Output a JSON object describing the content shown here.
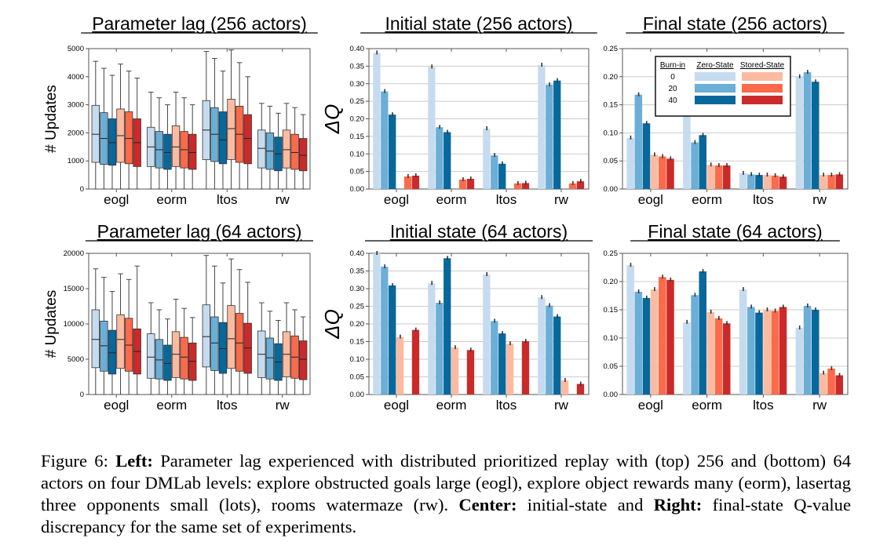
{
  "colors": {
    "zero": [
      "#c6dbef",
      "#6baed6",
      "#08689c"
    ],
    "stored": [
      "#fcbba1",
      "#fb6a4a",
      "#cb2a2a"
    ],
    "axis": "#555555",
    "grid": "#cccccc"
  },
  "legend": {
    "title_burnin": "Burn-in",
    "title_zero": "Zero-State",
    "title_stored": "Stored-State",
    "rows": [
      "0",
      "20",
      "40"
    ]
  },
  "caption": {
    "fig_label": "Figure 6:",
    "left_bold": "Left:",
    "text1": "Parameter lag experienced with distributed prioritized replay with (top) 256 and (bottom) 64 actors on four DMLab levels: explore obstructed goals large (eogl), explore object rewards many (eorm), lasertag three opponents small (lots), rooms watermaze (rw).",
    "center_bold": "Center:",
    "text2": "initial-state and",
    "right_bold": "Right:",
    "text3": "final-state Q-value discrepancy for the same set of experiments."
  },
  "chart_data": [
    {
      "type": "box",
      "title": "Parameter lag (256 actors)",
      "ylabel": "# Updates",
      "categories": [
        "eogl",
        "eorm",
        "ltos",
        "rw"
      ],
      "ylim": [
        0,
        5000
      ],
      "yticks": [
        "0",
        "1000",
        "2000",
        "3000",
        "4000",
        "5000"
      ],
      "series": [
        {
          "boxes": [
            {
              "whislo": 0,
              "q1": 950,
              "med": 1950,
              "q3": 2980,
              "whishi": 4550
            },
            {
              "whislo": 0,
              "q1": 800,
              "med": 1500,
              "q3": 2200,
              "whishi": 3450
            },
            {
              "whislo": 0,
              "q1": 1050,
              "med": 2100,
              "q3": 3150,
              "whishi": 4900
            },
            {
              "whislo": 0,
              "q1": 750,
              "med": 1450,
              "q3": 2100,
              "whishi": 3050
            }
          ]
        },
        {
          "boxes": [
            {
              "whislo": 0,
              "q1": 880,
              "med": 1800,
              "q3": 2720,
              "whishi": 4300
            },
            {
              "whislo": 0,
              "q1": 750,
              "med": 1400,
              "q3": 2050,
              "whishi": 3250
            },
            {
              "whislo": 0,
              "q1": 980,
              "med": 1950,
              "q3": 2900,
              "whishi": 4650
            },
            {
              "whislo": 0,
              "q1": 700,
              "med": 1350,
              "q3": 2000,
              "whishi": 2950
            }
          ]
        },
        {
          "boxes": [
            {
              "whislo": 0,
              "q1": 850,
              "med": 1650,
              "q3": 2500,
              "whishi": 4050
            },
            {
              "whislo": 0,
              "q1": 700,
              "med": 1300,
              "q3": 1950,
              "whishi": 3000
            },
            {
              "whislo": 0,
              "q1": 900,
              "med": 1750,
              "q3": 2750,
              "whishi": 4200
            },
            {
              "whislo": 0,
              "q1": 650,
              "med": 1250,
              "q3": 1850,
              "whishi": 2700
            }
          ]
        },
        {
          "boxes": [
            {
              "whislo": 0,
              "q1": 950,
              "med": 1900,
              "q3": 2850,
              "whishi": 4450
            },
            {
              "whislo": 0,
              "q1": 800,
              "med": 1500,
              "q3": 2250,
              "whishi": 3450
            },
            {
              "whislo": 0,
              "q1": 1050,
              "med": 2150,
              "q3": 3200,
              "whishi": 4950
            },
            {
              "whislo": 0,
              "q1": 750,
              "med": 1400,
              "q3": 2100,
              "whishi": 3050
            }
          ]
        },
        {
          "boxes": [
            {
              "whislo": 0,
              "q1": 900,
              "med": 1800,
              "q3": 2750,
              "whishi": 4200
            },
            {
              "whislo": 0,
              "q1": 750,
              "med": 1400,
              "q3": 2050,
              "whishi": 3250
            },
            {
              "whislo": 0,
              "q1": 950,
              "med": 1950,
              "q3": 2950,
              "whishi": 4500
            },
            {
              "whislo": 0,
              "q1": 700,
              "med": 1300,
              "q3": 1950,
              "whishi": 2900
            }
          ]
        },
        {
          "boxes": [
            {
              "whislo": 0,
              "q1": 800,
              "med": 1650,
              "q3": 2500,
              "whishi": 3950
            },
            {
              "whislo": 0,
              "q1": 700,
              "med": 1300,
              "q3": 1950,
              "whishi": 3000
            },
            {
              "whislo": 0,
              "q1": 900,
              "med": 1800,
              "q3": 2650,
              "whishi": 4000
            },
            {
              "whislo": 0,
              "q1": 650,
              "med": 1200,
              "q3": 1800,
              "whishi": 2650
            }
          ]
        }
      ]
    },
    {
      "type": "bar",
      "title": "Initial state (256 actors)",
      "ylabel": "ΔQ",
      "categories": [
        "eogl",
        "eorm",
        "ltos",
        "rw"
      ],
      "ylim": [
        0,
        0.4
      ],
      "yticks": [
        "0.00",
        "0.05",
        "0.10",
        "0.15",
        "0.20",
        "0.25",
        "0.30",
        "0.35",
        "0.40"
      ],
      "series": [
        {
          "values": [
            0.388,
            0.348,
            0.172,
            0.353
          ]
        },
        {
          "values": [
            0.278,
            0.176,
            0.096,
            0.297
          ]
        },
        {
          "values": [
            0.212,
            0.162,
            0.072,
            0.309
          ]
        },
        {
          "values": [
            0.0,
            0.0,
            0.0,
            0.0
          ]
        },
        {
          "values": [
            0.036,
            0.027,
            0.016,
            0.016
          ]
        },
        {
          "values": [
            0.038,
            0.029,
            0.017,
            0.022
          ]
        }
      ]
    },
    {
      "type": "bar",
      "title": "Final state (256 actors)",
      "ylabel": "",
      "categories": [
        "eogl",
        "eorm",
        "ltos",
        "rw"
      ],
      "ylim": [
        0,
        0.25
      ],
      "yticks": [
        "0.00",
        "0.05",
        "0.10",
        "0.15",
        "0.20",
        "0.25"
      ],
      "legend": true,
      "series": [
        {
          "values": [
            0.091,
            0.147,
            0.028,
            0.2
          ]
        },
        {
          "values": [
            0.168,
            0.083,
            0.026,
            0.208
          ]
        },
        {
          "values": [
            0.117,
            0.096,
            0.025,
            0.191
          ]
        },
        {
          "values": [
            0.061,
            0.043,
            0.025,
            0.025
          ]
        },
        {
          "values": [
            0.058,
            0.042,
            0.024,
            0.025
          ]
        },
        {
          "values": [
            0.054,
            0.042,
            0.022,
            0.026
          ]
        }
      ]
    },
    {
      "type": "box",
      "title": "Parameter lag (64 actors)",
      "ylabel": "# Updates",
      "categories": [
        "eogl",
        "eorm",
        "ltos",
        "rw"
      ],
      "ylim": [
        0,
        20000
      ],
      "yticks": [
        "0",
        "5000",
        "10000",
        "15000",
        "20000"
      ],
      "series": [
        {
          "boxes": [
            {
              "whislo": 0,
              "q1": 3800,
              "med": 7800,
              "q3": 12000,
              "whishi": 17800
            },
            {
              "whislo": 0,
              "q1": 2300,
              "med": 5300,
              "q3": 8600,
              "whishi": 13000
            },
            {
              "whislo": 0,
              "q1": 3900,
              "med": 8200,
              "q3": 12700,
              "whishi": 19700
            },
            {
              "whislo": 0,
              "q1": 2400,
              "med": 5700,
              "q3": 9000,
              "whishi": 13000
            }
          ]
        },
        {
          "boxes": [
            {
              "whislo": 0,
              "q1": 3300,
              "med": 6900,
              "q3": 10400,
              "whishi": 16600
            },
            {
              "whislo": 0,
              "q1": 2200,
              "med": 4900,
              "q3": 7800,
              "whishi": 12000
            },
            {
              "whislo": 0,
              "q1": 3400,
              "med": 7300,
              "q3": 11000,
              "whishi": 18200
            },
            {
              "whislo": 0,
              "q1": 2200,
              "med": 5200,
              "q3": 8000,
              "whishi": 11800
            }
          ]
        },
        {
          "boxes": [
            {
              "whislo": 0,
              "q1": 2900,
              "med": 5900,
              "q3": 9100,
              "whishi": 14600
            },
            {
              "whislo": 0,
              "q1": 2000,
              "med": 4400,
              "q3": 7000,
              "whishi": 10700
            },
            {
              "whislo": 0,
              "q1": 3000,
              "med": 6500,
              "q3": 10200,
              "whishi": 15800
            },
            {
              "whislo": 0,
              "q1": 2000,
              "med": 4600,
              "q3": 7200,
              "whishi": 10500
            }
          ]
        },
        {
          "boxes": [
            {
              "whislo": 0,
              "q1": 3700,
              "med": 7800,
              "q3": 11300,
              "whishi": 17100
            },
            {
              "whislo": 0,
              "q1": 2400,
              "med": 5700,
              "q3": 8900,
              "whishi": 13500
            },
            {
              "whislo": 0,
              "q1": 3700,
              "med": 7900,
              "q3": 12600,
              "whishi": 19200
            },
            {
              "whislo": 0,
              "q1": 2500,
              "med": 5700,
              "q3": 8900,
              "whishi": 13000
            }
          ]
        },
        {
          "boxes": [
            {
              "whislo": 0,
              "q1": 3300,
              "med": 7000,
              "q3": 10800,
              "whishi": 16300
            },
            {
              "whislo": 0,
              "q1": 2200,
              "med": 5300,
              "q3": 8100,
              "whishi": 12200
            },
            {
              "whislo": 0,
              "q1": 3300,
              "med": 7300,
              "q3": 11500,
              "whishi": 17700
            },
            {
              "whislo": 0,
              "q1": 2300,
              "med": 5300,
              "q3": 8300,
              "whishi": 12000
            }
          ]
        },
        {
          "boxes": [
            {
              "whislo": 0,
              "q1": 2900,
              "med": 6100,
              "q3": 9300,
              "whishi": 18200
            },
            {
              "whislo": 0,
              "q1": 2000,
              "med": 4700,
              "q3": 7300,
              "whishi": 10900
            },
            {
              "whislo": 0,
              "q1": 3000,
              "med": 6600,
              "q3": 10100,
              "whishi": 15900
            },
            {
              "whislo": 0,
              "q1": 2100,
              "med": 5000,
              "q3": 7600,
              "whishi": 11000
            }
          ]
        }
      ]
    },
    {
      "type": "bar",
      "title": "Initial state (64 actors)",
      "ylabel": "ΔQ",
      "categories": [
        "eogl",
        "eorm",
        "ltos",
        "rw"
      ],
      "ylim": [
        0,
        0.4
      ],
      "yticks": [
        "0.00",
        "0.05",
        "0.10",
        "0.15",
        "0.20",
        "0.25",
        "0.30",
        "0.35",
        "0.40"
      ],
      "series": [
        {
          "values": [
            0.4,
            0.315,
            0.34,
            0.275
          ]
        },
        {
          "values": [
            0.362,
            0.26,
            0.208,
            0.252
          ]
        },
        {
          "values": [
            0.309,
            0.386,
            0.173,
            0.221
          ]
        },
        {
          "values": [
            0.163,
            0.133,
            0.144,
            0.04
          ]
        },
        {
          "values": [
            0.0,
            0.0,
            0.0,
            0.0
          ]
        },
        {
          "values": [
            0.183,
            0.126,
            0.151,
            0.03
          ]
        }
      ]
    },
    {
      "type": "bar",
      "title": "Final state (64 actors)",
      "ylabel": "",
      "categories": [
        "eogl",
        "eorm",
        "ltos",
        "rw"
      ],
      "ylim": [
        0,
        0.25
      ],
      "yticks": [
        "0.00",
        "0.05",
        "0.10",
        "0.15",
        "0.20",
        "0.25"
      ],
      "series": [
        {
          "values": [
            0.229,
            0.128,
            0.186,
            0.118
          ]
        },
        {
          "values": [
            0.182,
            0.176,
            0.155,
            0.157
          ]
        },
        {
          "values": [
            0.171,
            0.218,
            0.145,
            0.15
          ]
        },
        {
          "values": [
            0.186,
            0.146,
            0.15,
            0.038
          ]
        },
        {
          "values": [
            0.208,
            0.135,
            0.148,
            0.046
          ]
        },
        {
          "values": [
            0.203,
            0.126,
            0.155,
            0.034
          ]
        }
      ]
    }
  ]
}
